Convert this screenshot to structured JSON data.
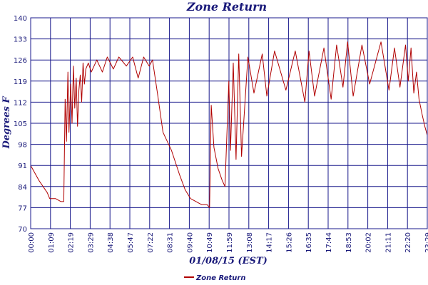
{
  "chart_data": {
    "type": "line",
    "title": "Zone Return",
    "xlabel": "01/08/15 (EST)",
    "ylabel": "Degrees F",
    "ylim": [
      70,
      140
    ],
    "y_ticks": [
      70,
      77,
      84,
      91,
      98,
      105,
      112,
      119,
      126,
      133,
      140
    ],
    "x_tick_labels": [
      "00:00",
      "01:09",
      "02:19",
      "03:29",
      "04:38",
      "05:47",
      "07:22",
      "08:31",
      "09:40",
      "10:49",
      "11:59",
      "13:08",
      "14:17",
      "15:26",
      "16:35",
      "17:44",
      "18:53",
      "20:02",
      "21:11",
      "22:20",
      "23:29"
    ],
    "grid": true,
    "legend_position": "bottom-left",
    "colors": {
      "series": "#b00000",
      "grid": "#1a1a8c",
      "text": "#1a1a7a"
    },
    "series": [
      {
        "name": "Zone Return",
        "x": [
          "00:00",
          "00:30",
          "01:00",
          "01:09",
          "01:30",
          "01:50",
          "02:00",
          "02:05",
          "02:10",
          "02:15",
          "02:19",
          "02:25",
          "02:30",
          "02:35",
          "02:40",
          "02:45",
          "02:50",
          "02:55",
          "03:00",
          "03:05",
          "03:10",
          "03:15",
          "03:20",
          "03:29",
          "03:40",
          "04:00",
          "04:20",
          "04:38",
          "05:00",
          "05:20",
          "05:47",
          "06:10",
          "06:30",
          "06:50",
          "07:10",
          "07:22",
          "07:40",
          "08:00",
          "08:31",
          "09:00",
          "09:20",
          "09:40",
          "10:00",
          "10:20",
          "10:40",
          "10:49",
          "10:55",
          "11:05",
          "11:20",
          "11:35",
          "11:45",
          "11:59",
          "12:05",
          "12:15",
          "12:25",
          "12:35",
          "12:45",
          "13:08",
          "13:30",
          "14:00",
          "14:17",
          "14:45",
          "15:26",
          "16:00",
          "16:35",
          "16:50",
          "17:10",
          "17:44",
          "18:10",
          "18:30",
          "18:53",
          "19:10",
          "19:30",
          "20:02",
          "20:30",
          "21:11",
          "21:40",
          "22:00",
          "22:20",
          "22:40",
          "22:50",
          "23:00",
          "23:10",
          "23:20",
          "23:29",
          "23:40",
          "23:50",
          "23:59"
        ],
        "values": [
          91,
          86,
          82,
          80,
          80,
          79,
          79,
          113,
          99,
          122,
          102,
          118,
          105,
          124,
          110,
          120,
          104,
          116,
          121,
          112,
          125,
          118,
          123,
          125,
          122,
          126,
          122,
          127,
          123,
          127,
          124,
          127,
          120,
          127,
          124,
          126,
          115,
          102,
          96,
          88,
          83,
          80,
          79,
          78,
          78,
          77,
          111,
          97,
          90,
          86,
          84,
          119,
          96,
          125,
          93,
          128,
          94,
          127,
          115,
          128,
          114,
          129,
          116,
          129,
          112,
          129,
          114,
          130,
          113,
          131,
          117,
          132,
          114,
          131,
          118,
          132,
          116,
          130,
          117,
          131,
          119,
          130,
          115,
          122,
          113,
          108,
          104,
          101
        ]
      }
    ]
  }
}
